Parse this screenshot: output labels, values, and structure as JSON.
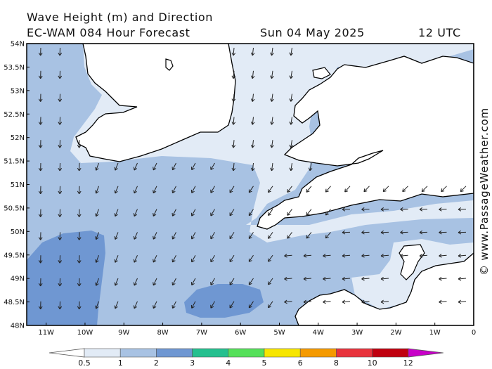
{
  "header": {
    "line1": "Wave Height (m) and Direction",
    "line2": "EC-WAM 084 Hour Forecast",
    "date": "Sun 04 May 2025",
    "time": "12 UTC"
  },
  "watermark": "© www.PassageWeather.com",
  "axes": {
    "lat_labels": [
      "54N",
      "53.5N",
      "53N",
      "52.5N",
      "52N",
      "51.5N",
      "51N",
      "50.5N",
      "50N",
      "49.5N",
      "49N",
      "48.5N",
      "48N"
    ],
    "lon_labels": [
      "11W",
      "10W",
      "9W",
      "8W",
      "7W",
      "6W",
      "5W",
      "4W",
      "3W",
      "2W",
      "1W",
      "0"
    ],
    "lat_range": [
      48,
      54
    ],
    "lon_range": [
      -11.5,
      0
    ]
  },
  "colorbar": {
    "labels": [
      "0.5",
      "1",
      "2",
      "3",
      "4",
      "5",
      "6",
      "8",
      "10",
      "12"
    ],
    "colors": [
      "#e2ebf6",
      "#a8c2e3",
      "#6f97d2",
      "#25c08f",
      "#55e05a",
      "#f7e600",
      "#f59a00",
      "#e8333c",
      "#c0000f",
      "#c800c8"
    ]
  },
  "colors": {
    "land": "#ffffff",
    "sea_low": "#e2ebf6",
    "sea_mid": "#a8c2e3",
    "sea_high": "#6f97d2",
    "arrow": "#222222"
  }
}
